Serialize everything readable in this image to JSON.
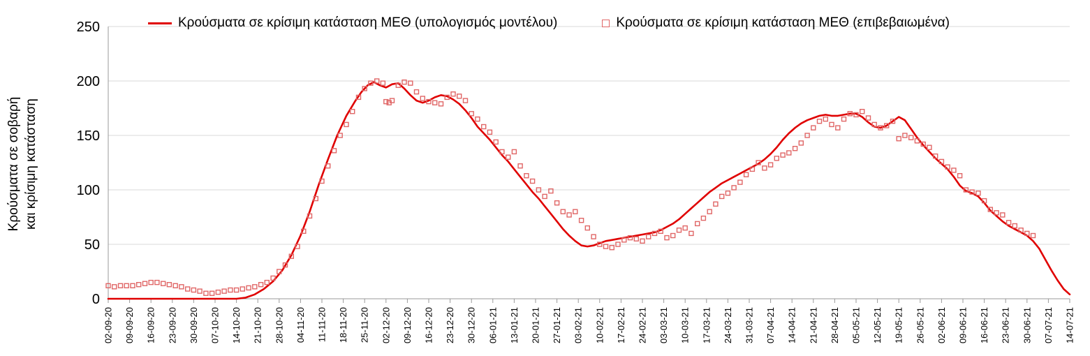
{
  "chart_data": {
    "type": "line",
    "title": "",
    "ylabel_lines": [
      "Κρούσματα σε σοβαρή",
      "και κρίσιμη κατάσταση"
    ],
    "ylim": [
      0,
      250
    ],
    "y_ticks": [
      0,
      50,
      100,
      150,
      200,
      250
    ],
    "grid": "horizontal",
    "legend_position": "top",
    "x_max_day": 315,
    "x_tick_step_days": 7,
    "x_tick_labels": [
      "02-09-20",
      "09-09-20",
      "16-09-20",
      "23-09-20",
      "30-09-20",
      "07-10-20",
      "14-10-20",
      "21-10-20",
      "28-10-20",
      "04-11-20",
      "11-11-20",
      "18-11-20",
      "25-11-20",
      "02-12-20",
      "09-12-20",
      "16-12-20",
      "23-12-20",
      "30-12-20",
      "06-01-21",
      "13-01-21",
      "20-01-21",
      "27-01-21",
      "03-02-21",
      "10-02-21",
      "17-02-21",
      "24-02-21",
      "03-03-21",
      "10-03-21",
      "17-03-21",
      "24-03-21",
      "31-03-21",
      "07-04-21",
      "14-04-21",
      "21-04-21",
      "28-04-21",
      "05-05-21",
      "12-05-21",
      "19-05-21",
      "26-05-21",
      "02-06-21",
      "09-06-21",
      "16-06-21",
      "23-06-21",
      "30-06-21",
      "07-07-21",
      "14-07-21"
    ],
    "series": [
      {
        "name": "Κρούσματα σε κρίσιμη κατάσταση ΜΕΘ (υπολογισμός μοντέλου)",
        "type": "line",
        "color": "#e00000",
        "points": [
          [
            0,
            0
          ],
          [
            35,
            0
          ],
          [
            42,
            0
          ],
          [
            45,
            1
          ],
          [
            48,
            4
          ],
          [
            51,
            9
          ],
          [
            54,
            16
          ],
          [
            57,
            26
          ],
          [
            60,
            40
          ],
          [
            63,
            58
          ],
          [
            66,
            80
          ],
          [
            69,
            105
          ],
          [
            72,
            128
          ],
          [
            75,
            150
          ],
          [
            78,
            168
          ],
          [
            81,
            182
          ],
          [
            83,
            190
          ],
          [
            85,
            196
          ],
          [
            87,
            199
          ],
          [
            89,
            196
          ],
          [
            91,
            194
          ],
          [
            93,
            197
          ],
          [
            95,
            198
          ],
          [
            97,
            193
          ],
          [
            99,
            187
          ],
          [
            101,
            182
          ],
          [
            103,
            180
          ],
          [
            105,
            182
          ],
          [
            107,
            185
          ],
          [
            109,
            187
          ],
          [
            111,
            186
          ],
          [
            113,
            183
          ],
          [
            115,
            179
          ],
          [
            117,
            173
          ],
          [
            119,
            166
          ],
          [
            121,
            158
          ],
          [
            123,
            152
          ],
          [
            125,
            146
          ],
          [
            127,
            139
          ],
          [
            129,
            132
          ],
          [
            131,
            126
          ],
          [
            133,
            119
          ],
          [
            135,
            112
          ],
          [
            137,
            105
          ],
          [
            139,
            98
          ],
          [
            141,
            92
          ],
          [
            143,
            85
          ],
          [
            145,
            78
          ],
          [
            147,
            71
          ],
          [
            149,
            64
          ],
          [
            151,
            58
          ],
          [
            153,
            53
          ],
          [
            155,
            49
          ],
          [
            157,
            48
          ],
          [
            159,
            49
          ],
          [
            161,
            51
          ],
          [
            163,
            53
          ],
          [
            165,
            54
          ],
          [
            167,
            55
          ],
          [
            169,
            56
          ],
          [
            171,
            57
          ],
          [
            173,
            58
          ],
          [
            175,
            59
          ],
          [
            177,
            60
          ],
          [
            179,
            61
          ],
          [
            181,
            63
          ],
          [
            183,
            66
          ],
          [
            185,
            69
          ],
          [
            187,
            73
          ],
          [
            189,
            78
          ],
          [
            191,
            83
          ],
          [
            193,
            88
          ],
          [
            195,
            93
          ],
          [
            197,
            98
          ],
          [
            199,
            102
          ],
          [
            201,
            106
          ],
          [
            203,
            109
          ],
          [
            205,
            112
          ],
          [
            207,
            115
          ],
          [
            209,
            118
          ],
          [
            211,
            121
          ],
          [
            213,
            124
          ],
          [
            215,
            128
          ],
          [
            217,
            133
          ],
          [
            219,
            139
          ],
          [
            221,
            146
          ],
          [
            223,
            152
          ],
          [
            225,
            157
          ],
          [
            227,
            161
          ],
          [
            229,
            164
          ],
          [
            231,
            166
          ],
          [
            233,
            168
          ],
          [
            235,
            169
          ],
          [
            237,
            168
          ],
          [
            239,
            168
          ],
          [
            241,
            169
          ],
          [
            243,
            170
          ],
          [
            245,
            170
          ],
          [
            247,
            167
          ],
          [
            249,
            162
          ],
          [
            251,
            158
          ],
          [
            253,
            157
          ],
          [
            255,
            159
          ],
          [
            257,
            163
          ],
          [
            259,
            167
          ],
          [
            261,
            164
          ],
          [
            263,
            156
          ],
          [
            265,
            148
          ],
          [
            267,
            141
          ],
          [
            269,
            135
          ],
          [
            271,
            129
          ],
          [
            273,
            124
          ],
          [
            275,
            119
          ],
          [
            277,
            112
          ],
          [
            279,
            104
          ],
          [
            281,
            99
          ],
          [
            283,
            97
          ],
          [
            285,
            94
          ],
          [
            287,
            88
          ],
          [
            289,
            81
          ],
          [
            291,
            76
          ],
          [
            293,
            71
          ],
          [
            295,
            67
          ],
          [
            297,
            64
          ],
          [
            299,
            61
          ],
          [
            301,
            58
          ],
          [
            303,
            53
          ],
          [
            305,
            46
          ],
          [
            307,
            36
          ],
          [
            309,
            26
          ],
          [
            311,
            17
          ],
          [
            313,
            9
          ],
          [
            315,
            4
          ]
        ]
      },
      {
        "name": "Κρούσματα σε κρίσιμη κατάσταση ΜΕΘ (επιβεβαιωμένα)",
        "type": "scatter",
        "color": "#e06666",
        "points": [
          [
            0,
            12
          ],
          [
            2,
            11
          ],
          [
            4,
            12
          ],
          [
            6,
            12
          ],
          [
            8,
            12
          ],
          [
            10,
            13
          ],
          [
            12,
            14
          ],
          [
            14,
            15
          ],
          [
            16,
            15
          ],
          [
            18,
            14
          ],
          [
            20,
            13
          ],
          [
            22,
            12
          ],
          [
            24,
            11
          ],
          [
            26,
            9
          ],
          [
            28,
            8
          ],
          [
            30,
            7
          ],
          [
            32,
            5
          ],
          [
            34,
            5
          ],
          [
            36,
            6
          ],
          [
            38,
            7
          ],
          [
            40,
            8
          ],
          [
            42,
            8
          ],
          [
            44,
            9
          ],
          [
            46,
            10
          ],
          [
            48,
            11
          ],
          [
            50,
            13
          ],
          [
            52,
            15
          ],
          [
            54,
            19
          ],
          [
            56,
            25
          ],
          [
            58,
            31
          ],
          [
            60,
            39
          ],
          [
            62,
            48
          ],
          [
            64,
            62
          ],
          [
            66,
            76
          ],
          [
            68,
            92
          ],
          [
            70,
            108
          ],
          [
            72,
            122
          ],
          [
            74,
            136
          ],
          [
            76,
            150
          ],
          [
            78,
            160
          ],
          [
            80,
            172
          ],
          [
            82,
            185
          ],
          [
            84,
            193
          ],
          [
            86,
            198
          ],
          [
            88,
            200
          ],
          [
            90,
            198
          ],
          [
            91,
            181
          ],
          [
            92,
            180
          ],
          [
            93,
            182
          ],
          [
            95,
            196
          ],
          [
            97,
            199
          ],
          [
            99,
            198
          ],
          [
            101,
            190
          ],
          [
            103,
            184
          ],
          [
            105,
            181
          ],
          [
            107,
            180
          ],
          [
            109,
            179
          ],
          [
            111,
            185
          ],
          [
            113,
            188
          ],
          [
            115,
            186
          ],
          [
            117,
            182
          ],
          [
            119,
            170
          ],
          [
            121,
            165
          ],
          [
            123,
            158
          ],
          [
            125,
            153
          ],
          [
            127,
            144
          ],
          [
            129,
            135
          ],
          [
            131,
            130
          ],
          [
            133,
            135
          ],
          [
            135,
            122
          ],
          [
            137,
            113
          ],
          [
            139,
            108
          ],
          [
            141,
            100
          ],
          [
            143,
            94
          ],
          [
            145,
            99
          ],
          [
            147,
            88
          ],
          [
            149,
            80
          ],
          [
            151,
            77
          ],
          [
            153,
            80
          ],
          [
            155,
            72
          ],
          [
            157,
            65
          ],
          [
            159,
            57
          ],
          [
            161,
            50
          ],
          [
            163,
            48
          ],
          [
            165,
            47
          ],
          [
            167,
            50
          ],
          [
            169,
            54
          ],
          [
            171,
            56
          ],
          [
            173,
            55
          ],
          [
            175,
            53
          ],
          [
            177,
            57
          ],
          [
            179,
            60
          ],
          [
            181,
            62
          ],
          [
            183,
            56
          ],
          [
            185,
            58
          ],
          [
            187,
            63
          ],
          [
            189,
            65
          ],
          [
            191,
            60
          ],
          [
            193,
            69
          ],
          [
            195,
            74
          ],
          [
            197,
            80
          ],
          [
            199,
            87
          ],
          [
            201,
            94
          ],
          [
            203,
            97
          ],
          [
            205,
            102
          ],
          [
            207,
            107
          ],
          [
            209,
            114
          ],
          [
            211,
            119
          ],
          [
            213,
            125
          ],
          [
            215,
            120
          ],
          [
            217,
            123
          ],
          [
            219,
            129
          ],
          [
            221,
            132
          ],
          [
            223,
            134
          ],
          [
            225,
            138
          ],
          [
            227,
            143
          ],
          [
            229,
            150
          ],
          [
            231,
            157
          ],
          [
            233,
            163
          ],
          [
            235,
            165
          ],
          [
            237,
            160
          ],
          [
            239,
            157
          ],
          [
            241,
            165
          ],
          [
            243,
            170
          ],
          [
            245,
            169
          ],
          [
            247,
            172
          ],
          [
            249,
            166
          ],
          [
            251,
            160
          ],
          [
            253,
            157
          ],
          [
            255,
            159
          ],
          [
            257,
            163
          ],
          [
            259,
            147
          ],
          [
            261,
            150
          ],
          [
            263,
            148
          ],
          [
            265,
            145
          ],
          [
            267,
            142
          ],
          [
            269,
            139
          ],
          [
            271,
            131
          ],
          [
            273,
            126
          ],
          [
            275,
            121
          ],
          [
            277,
            118
          ],
          [
            279,
            113
          ],
          [
            281,
            100
          ],
          [
            283,
            98
          ],
          [
            285,
            97
          ],
          [
            287,
            90
          ],
          [
            289,
            82
          ],
          [
            291,
            79
          ],
          [
            293,
            77
          ],
          [
            295,
            70
          ],
          [
            297,
            67
          ],
          [
            299,
            63
          ],
          [
            301,
            60
          ],
          [
            303,
            58
          ]
        ]
      }
    ]
  }
}
